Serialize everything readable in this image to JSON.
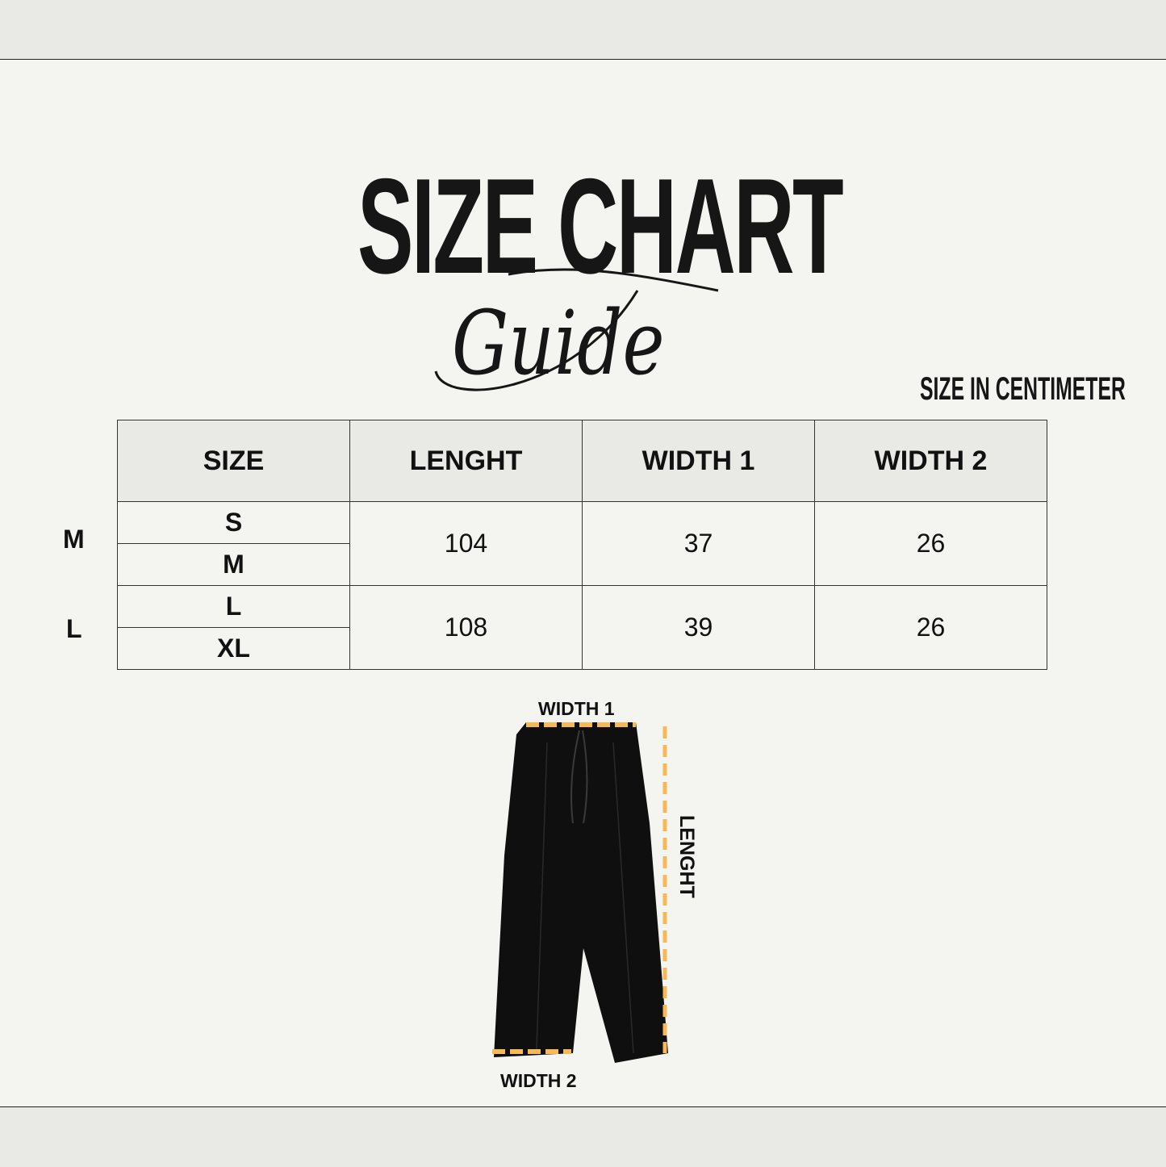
{
  "header": {
    "title": "SIZE CHART",
    "subtitle": "Guide",
    "unit_note": "SIZE IN CENTIMETER"
  },
  "table": {
    "columns": [
      "SIZE",
      "LENGHT",
      "WIDTH 1",
      "WIDTH 2"
    ],
    "groups": [
      {
        "label": "M",
        "sizes": [
          "S",
          "M"
        ],
        "lenght": "104",
        "width1": "37",
        "width2": "26"
      },
      {
        "label": "L",
        "sizes": [
          "L",
          "XL"
        ],
        "lenght": "108",
        "width1": "39",
        "width2": "26"
      }
    ]
  },
  "diagram": {
    "width1_label": "WIDTH 1",
    "width2_label": "WIDTH 2",
    "lenght_label": "LENGHT",
    "measure_color": "#f6b956",
    "garment_color": "#0f0f0f"
  }
}
